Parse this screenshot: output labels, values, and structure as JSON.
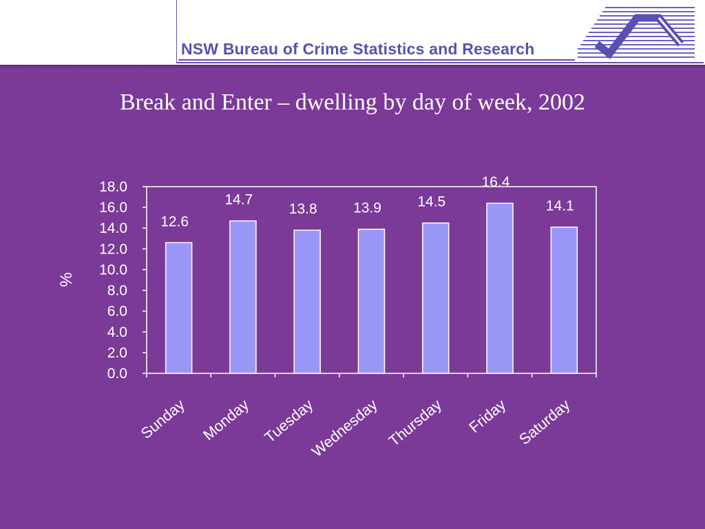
{
  "header": {
    "org_name": "NSW Bureau of Crime Statistics and Research",
    "logo_icon": "bocsar-logo-icon"
  },
  "colors": {
    "background": "#7b3a97",
    "bar_fill": "#9a96f8",
    "axis": "#ffffff",
    "brand": "#5b4fb0"
  },
  "chart_data": {
    "type": "bar",
    "title": "Break and Enter – dwelling by day of week, 2002",
    "xlabel": "",
    "ylabel": "%",
    "categories": [
      "Sunday",
      "Monday",
      "Tuesday",
      "Wednesday",
      "Thursday",
      "Friday",
      "Saturday"
    ],
    "values": [
      12.6,
      14.7,
      13.8,
      13.9,
      14.5,
      16.4,
      14.1
    ],
    "data_labels": [
      "12.6",
      "14.7",
      "13.8",
      "13.9",
      "14.5",
      "16.4",
      "14.1"
    ],
    "ylim": [
      0,
      18
    ],
    "yticks": [
      "0.0",
      "2.0",
      "4.0",
      "6.0",
      "8.0",
      "10.0",
      "12.0",
      "14.0",
      "16.0",
      "18.0"
    ],
    "grid": false,
    "legend": "none"
  }
}
